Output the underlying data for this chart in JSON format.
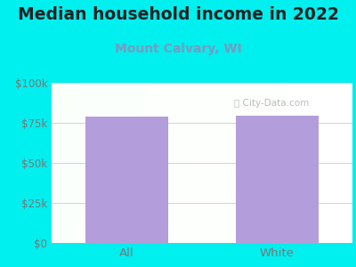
{
  "title": "Median household income in 2022",
  "subtitle": "Mount Calvary, WI",
  "categories": [
    "All",
    "White"
  ],
  "values": [
    79000,
    79500
  ],
  "bar_color": "#b39ddb",
  "title_fontsize": 13.5,
  "subtitle_fontsize": 10,
  "title_color": "#222222",
  "subtitle_color": "#7a9abf",
  "tick_label_color": "#777777",
  "background_outer": "#00efef",
  "ylim": [
    0,
    100000
  ],
  "yticks": [
    0,
    25000,
    50000,
    75000,
    100000
  ],
  "ytick_labels": [
    "$0",
    "$25k",
    "$50k",
    "$75k",
    "$100k"
  ],
  "watermark": "City-Data.com",
  "bar_width": 0.55
}
